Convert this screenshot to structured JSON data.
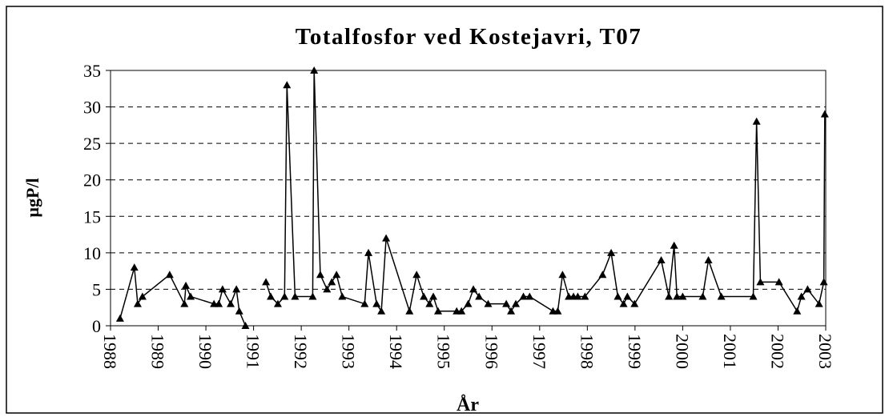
{
  "chart_data": {
    "type": "line",
    "title": "Totalfosfor ved Kostejavri, T07",
    "x_label": "År",
    "y_label": "µgP/l",
    "x": [
      1988.2,
      1988.5,
      1988.57,
      1988.67,
      1989.24,
      1989.55,
      1989.58,
      1989.68,
      1990.17,
      1990.27,
      1990.35,
      1990.52,
      1990.64,
      1990.7,
      1990.83,
      1991.0,
      1991.26,
      1991.36,
      1991.51,
      1991.65,
      1991.7,
      1991.87,
      1992.24,
      1992.27,
      1992.4,
      1992.54,
      1992.64,
      1992.74,
      1992.86,
      1993.33,
      1993.41,
      1993.58,
      1993.68,
      1993.78,
      1994.27,
      1994.42,
      1994.57,
      1994.69,
      1994.77,
      1994.87,
      1995.26,
      1995.36,
      1995.5,
      1995.61,
      1995.73,
      1995.92,
      1996.3,
      1996.4,
      1996.5,
      1996.66,
      1996.79,
      1997.28,
      1997.38,
      1997.48,
      1997.61,
      1997.71,
      1997.8,
      1997.95,
      1998.32,
      1998.5,
      1998.64,
      1998.76,
      1998.84,
      1998.99,
      1999.55,
      1999.71,
      1999.82,
      1999.88,
      2000.0,
      2000.42,
      2000.54,
      2000.81,
      2001.48,
      2001.55,
      2001.63,
      2002.02,
      2002.4,
      2002.49,
      2002.62,
      2002.86,
      2002.96,
      2002.98
    ],
    "series": [
      {
        "name": "Totalfosfor",
        "color": "#000000",
        "values": [
          1,
          8,
          3,
          4,
          7,
          3,
          5.5,
          4,
          3,
          3,
          5,
          3,
          5,
          2,
          0,
          null,
          6,
          4,
          3,
          4,
          33,
          4,
          4,
          35,
          7,
          5,
          6,
          7,
          4,
          3,
          10,
          3,
          2,
          12,
          2,
          7,
          4,
          3,
          4,
          2,
          2,
          2,
          3,
          5,
          4,
          3,
          3,
          2,
          3,
          4,
          4,
          2,
          2,
          7,
          4,
          4,
          4,
          4,
          7,
          10,
          4,
          3,
          4,
          3,
          9,
          4,
          11,
          4,
          4,
          4,
          9,
          4,
          4,
          28,
          6,
          6,
          2,
          4,
          5,
          3,
          6,
          29
        ]
      }
    ],
    "xlim": [
      1988,
      2003
    ],
    "xticks": [
      1988,
      1989,
      1990,
      1991,
      1992,
      1993,
      1994,
      1995,
      1996,
      1997,
      1998,
      1999,
      2000,
      2001,
      2002,
      2003
    ],
    "ylim": [
      0,
      35
    ],
    "yticks": [
      0,
      5,
      10,
      15,
      20,
      25,
      30,
      35
    ],
    "grid": true,
    "marker": "triangle"
  }
}
